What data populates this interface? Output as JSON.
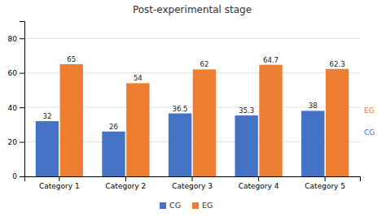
{
  "chart_data": {
    "type": "bar",
    "title": "Post-experimental stage",
    "categories": [
      "Category 1",
      "Category 2",
      "Category 3",
      "Category 4",
      "Category 5"
    ],
    "series": [
      {
        "name": "CG",
        "color": "#4472C4",
        "values": [
          32,
          26,
          36.5,
          35.3,
          38
        ]
      },
      {
        "name": "EG",
        "color": "#ED7D31",
        "values": [
          65,
          54,
          62,
          64.7,
          62.3
        ]
      }
    ],
    "ylim": [
      0,
      90
    ],
    "yticks": [
      0,
      20,
      40,
      60,
      80
    ],
    "grid": true,
    "legend": "bottom",
    "data_labels": true,
    "annotations": [
      "EG",
      "CG"
    ]
  }
}
